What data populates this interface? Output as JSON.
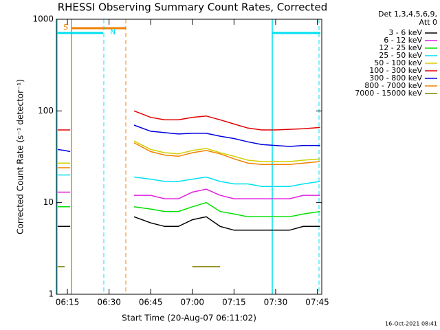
{
  "chart_data": {
    "type": "line",
    "title": "RHESSI Observing Summary Count Rates, Corrected",
    "xlabel": "Start Time (20-Aug-07 06:11:02)",
    "ylabel": "Corrected Count Rate (s⁻¹ detector⁻¹)",
    "legend_title": [
      "Det 1,3,4,5,6,9,",
      "Att 0"
    ],
    "footer": "16-Oct-2021 08:41",
    "flags": [
      "S",
      "N"
    ],
    "ylog": true,
    "xlim": [
      11.03,
      106.6
    ],
    "ylim": [
      1,
      1000
    ],
    "xticks": [
      {
        "value": 15,
        "label": "06:15"
      },
      {
        "value": 30,
        "label": "06:30"
      },
      {
        "value": 45,
        "label": "06:45"
      },
      {
        "value": 60,
        "label": "07:00"
      },
      {
        "value": 75,
        "label": "07:15"
      },
      {
        "value": 90,
        "label": "07:30"
      },
      {
        "value": 105,
        "label": "07:45"
      }
    ],
    "yticks": [
      1,
      10,
      100,
      1000
    ],
    "legend": "right",
    "x": [
      11.5,
      14,
      16,
      27,
      39,
      45,
      50,
      55,
      60,
      65,
      70,
      75,
      80,
      85,
      90,
      95,
      100,
      106
    ],
    "series": [
      {
        "name": "3 - 6 keV",
        "color": "#000000",
        "values": [
          5.5,
          5.5,
          5.5,
          null,
          7,
          6,
          5.5,
          5.5,
          6.5,
          7,
          5.5,
          5,
          5,
          5,
          5,
          5,
          5.5,
          5.5
        ]
      },
      {
        "name": "6 - 12 keV",
        "color": "#e020e0",
        "values": [
          13,
          13,
          13,
          null,
          12,
          12,
          11,
          11,
          13,
          14,
          12,
          11,
          11,
          11,
          11,
          11,
          12,
          12
        ]
      },
      {
        "name": "12 - 25 keV",
        "color": "#00e000",
        "values": [
          9,
          9,
          9,
          null,
          9,
          8.5,
          8,
          8,
          9,
          10,
          8,
          7.5,
          7,
          7,
          7,
          7,
          7.5,
          8
        ]
      },
      {
        "name": "25 - 50 keV",
        "color": "#00e0f0",
        "values": [
          20,
          20,
          20,
          null,
          19,
          18,
          17,
          17,
          18,
          19,
          17,
          16,
          16,
          15,
          15,
          15,
          16,
          17
        ]
      },
      {
        "name": "50 - 100 keV",
        "color": "#d0d000",
        "values": [
          27,
          27,
          27,
          null,
          47,
          38,
          35,
          34,
          37,
          39,
          35,
          32,
          29,
          28,
          28,
          28,
          29,
          30
        ]
      },
      {
        "name": "100 - 300 keV",
        "color": "#e00000",
        "values": [
          62,
          62,
          62,
          null,
          100,
          85,
          80,
          80,
          85,
          88,
          80,
          72,
          65,
          62,
          62,
          63,
          64,
          66
        ]
      },
      {
        "name": "300 - 800 keV",
        "color": "#0000e0",
        "values": [
          38,
          37,
          36,
          null,
          70,
          60,
          58,
          56,
          57,
          57,
          53,
          50,
          46,
          43,
          42,
          41,
          42,
          42
        ]
      },
      {
        "name": "800 - 7000 keV",
        "color": "#f08000",
        "values": [
          24,
          24,
          24,
          null,
          45,
          36,
          33,
          32,
          35,
          37,
          34,
          30,
          27,
          26,
          26,
          26,
          27,
          28
        ]
      },
      {
        "name": "7000 - 15000 keV",
        "color": "#808000",
        "values": [
          2,
          2,
          null,
          null,
          null,
          null,
          null,
          null,
          2,
          2,
          2,
          null,
          null,
          null,
          null,
          null,
          null,
          null
        ]
      }
    ]
  }
}
